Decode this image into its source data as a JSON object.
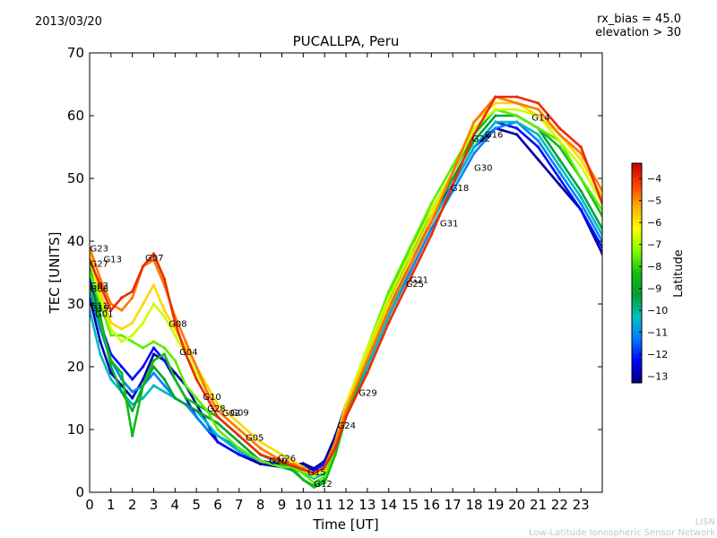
{
  "header": {
    "date": "2013/03/20",
    "rx_bias": "rx_bias = 45.0",
    "elevation": "elevation > 30"
  },
  "footer": {
    "line1": "LISN",
    "line2": "Low-Latitude Ionospheric Sensor Network"
  },
  "chart_data": {
    "type": "scatter",
    "title": "PUCALLPA, Peru",
    "xlabel": "Time [UT]",
    "ylabel": "TEC [UNITS]",
    "xlim": [
      0,
      24
    ],
    "ylim": [
      0,
      70
    ],
    "xticks": [
      0,
      1,
      2,
      3,
      4,
      5,
      6,
      7,
      8,
      9,
      10,
      11,
      12,
      13,
      14,
      15,
      16,
      17,
      18,
      19,
      20,
      21,
      22,
      23
    ],
    "yticks": [
      0,
      10,
      20,
      30,
      40,
      50,
      60,
      70
    ],
    "grid": false,
    "colorbar": {
      "label": "Latitude",
      "min": -13.3,
      "max": -3.3,
      "ticks": [
        -4,
        -5,
        -6,
        -7,
        -8,
        -9,
        -10,
        -11,
        -12,
        -13
      ],
      "colors": [
        "#00007f",
        "#0000ff",
        "#007fff",
        "#00bfbf",
        "#00a030",
        "#11c011",
        "#7fff00",
        "#ffff00",
        "#ffb000",
        "#ff4000",
        "#bf0000"
      ]
    },
    "satellite_labels": [
      {
        "text": "G23",
        "x": 0.02,
        "y": 38.9
      },
      {
        "text": "G27",
        "x": 0.02,
        "y": 36.5
      },
      {
        "text": "G13",
        "x": 0.65,
        "y": 37.2
      },
      {
        "text": "G03",
        "x": 0.02,
        "y": 33.0
      },
      {
        "text": "G06",
        "x": 0.02,
        "y": 32.5
      },
      {
        "text": "G11",
        "x": 0.02,
        "y": 29.8
      },
      {
        "text": "G19",
        "x": 0.05,
        "y": 29.4
      },
      {
        "text": "G01",
        "x": 0.25,
        "y": 28.5
      },
      {
        "text": "G07",
        "x": 2.6,
        "y": 37.4
      },
      {
        "text": "G08",
        "x": 3.7,
        "y": 26.9
      },
      {
        "text": "G04",
        "x": 4.2,
        "y": 22.4
      },
      {
        "text": "G10",
        "x": 5.3,
        "y": 15.3
      },
      {
        "text": "G28",
        "x": 5.5,
        "y": 13.4
      },
      {
        "text": "G02",
        "x": 6.2,
        "y": 12.7
      },
      {
        "text": "G09",
        "x": 6.6,
        "y": 12.8
      },
      {
        "text": "G05",
        "x": 7.3,
        "y": 8.8
      },
      {
        "text": "G20",
        "x": 8.4,
        "y": 5.1
      },
      {
        "text": "G26",
        "x": 8.8,
        "y": 5.5
      },
      {
        "text": "G15",
        "x": 10.2,
        "y": 3.3
      },
      {
        "text": "G12",
        "x": 10.5,
        "y": 1.4
      },
      {
        "text": "G24",
        "x": 11.6,
        "y": 10.7
      },
      {
        "text": "G29",
        "x": 12.6,
        "y": 15.9
      },
      {
        "text": "G21",
        "x": 15.0,
        "y": 33.9
      },
      {
        "text": "G25",
        "x": 14.8,
        "y": 33.3
      },
      {
        "text": "G31",
        "x": 16.4,
        "y": 42.9
      },
      {
        "text": "G18",
        "x": 16.9,
        "y": 48.6
      },
      {
        "text": "G30",
        "x": 18.0,
        "y": 51.8
      },
      {
        "text": "G22",
        "x": 17.9,
        "y": 56.4
      },
      {
        "text": "G16",
        "x": 18.5,
        "y": 57.1
      },
      {
        "text": "G14",
        "x": 20.7,
        "y": 59.8
      }
    ],
    "series": [
      {
        "lat": -13.0,
        "x": [
          0,
          0.5,
          1,
          1.5,
          2,
          2.5,
          3,
          3.5,
          4,
          4.5,
          5,
          5.5,
          6,
          7,
          8,
          9,
          9.5,
          10,
          10.5,
          11,
          11.5,
          12,
          13,
          14,
          15,
          16,
          17,
          18,
          19,
          20,
          21,
          22,
          23,
          24
        ],
        "y": [
          31,
          24,
          19,
          17,
          15,
          18,
          22,
          21,
          19,
          17,
          14,
          11,
          8,
          6,
          4.5,
          4,
          4.3,
          4.6,
          3.8,
          5,
          9,
          14,
          22,
          31,
          38,
          44,
          49,
          55,
          58,
          57,
          53,
          49,
          45,
          38
        ]
      },
      {
        "lat": -12.2,
        "x": [
          0,
          0.5,
          1,
          1.5,
          2,
          2.5,
          3,
          3.5,
          4,
          4.5,
          5,
          5.5,
          6,
          7,
          8,
          9,
          9.5,
          10,
          10.5,
          11,
          11.5,
          12,
          13,
          14,
          15,
          16,
          17,
          18,
          19,
          20,
          21,
          22,
          23,
          24
        ],
        "y": [
          34,
          27,
          22,
          20,
          18,
          20,
          23,
          21,
          18,
          15,
          12,
          10,
          8,
          6,
          5,
          4.5,
          4.5,
          4.2,
          3.5,
          4.5,
          8,
          13,
          21,
          29,
          37,
          43,
          49,
          55,
          59,
          58,
          55,
          50,
          45,
          39
        ]
      },
      {
        "lat": -11.2,
        "x": [
          0,
          0.5,
          1,
          1.5,
          2,
          2.5,
          3,
          3.5,
          4,
          4.5,
          5,
          5.5,
          6,
          7,
          8,
          9,
          9.5,
          10,
          10.5,
          11,
          11.5,
          12,
          13,
          14,
          15,
          16,
          17,
          18,
          19,
          20,
          21,
          22,
          23,
          24
        ],
        "y": [
          32,
          26,
          21,
          18,
          16,
          17,
          19,
          17,
          15,
          14,
          12,
          10,
          9,
          7,
          5,
          4,
          4,
          3.5,
          3,
          4,
          7,
          12,
          20,
          28,
          35,
          42,
          48,
          54,
          58,
          59,
          56,
          51,
          46,
          40
        ]
      },
      {
        "lat": -10.4,
        "x": [
          0,
          0.5,
          1,
          1.5,
          2,
          2.5,
          3,
          3.5,
          4,
          4.5,
          5,
          5.5,
          6,
          7,
          8,
          9,
          9.5,
          10,
          10.5,
          11,
          11.5,
          12,
          13,
          14,
          15,
          16,
          17,
          18,
          19,
          20,
          21,
          22,
          23,
          24
        ],
        "y": [
          29,
          22,
          18,
          16,
          14,
          15,
          17,
          16,
          15,
          14,
          13,
          11,
          9,
          6.5,
          5,
          4,
          3.8,
          3.2,
          2.2,
          3,
          7,
          12,
          20,
          28,
          36,
          43,
          49,
          55,
          59,
          59,
          57,
          52,
          47,
          41
        ]
      },
      {
        "lat": -9.4,
        "x": [
          0,
          0.5,
          1,
          1.5,
          2,
          2.5,
          3,
          3.5,
          4,
          4.5,
          5,
          5.5,
          6,
          7,
          8,
          9,
          9.5,
          10,
          10.5,
          11,
          11.5,
          12,
          13,
          14,
          15,
          16,
          17,
          18,
          19,
          20,
          21,
          22,
          23,
          24
        ],
        "y": [
          36,
          28,
          20,
          16,
          13,
          17,
          20,
          18,
          15,
          14,
          13,
          12,
          11,
          8,
          5,
          4,
          3.5,
          2,
          1,
          2,
          6,
          12,
          21,
          30,
          38,
          44,
          50,
          56,
          60,
          60,
          58,
          53,
          48,
          42
        ]
      },
      {
        "lat": -8.4,
        "x": [
          0,
          0.5,
          1,
          1.5,
          2,
          2.5,
          3,
          3.5,
          4,
          4.5,
          5,
          5.5,
          6,
          7,
          8,
          9,
          9.5,
          10,
          10.5,
          11,
          11.5,
          12,
          13,
          14,
          15,
          16,
          17,
          18,
          19,
          20,
          21,
          22,
          23,
          24
        ],
        "y": [
          33,
          27,
          21,
          19,
          9,
          17,
          21,
          22,
          18,
          15,
          14,
          13,
          12,
          9,
          6,
          4.5,
          3.8,
          2,
          0.8,
          1.5,
          6,
          12,
          22,
          31,
          39,
          45,
          51,
          57,
          61,
          60,
          58,
          55,
          50,
          44
        ]
      },
      {
        "lat": -7.6,
        "x": [
          0,
          0.5,
          1,
          1.5,
          2,
          2.5,
          3,
          3.5,
          4,
          4.5,
          5,
          5.5,
          6,
          7,
          8,
          9,
          9.5,
          10,
          10.5,
          11,
          11.5,
          12,
          13,
          14,
          15,
          16,
          17,
          18,
          19,
          20,
          21,
          22,
          23,
          24
        ],
        "y": [
          35,
          30,
          25,
          25,
          24,
          23,
          24,
          23,
          21,
          17,
          15,
          13,
          10,
          7,
          5,
          4,
          4,
          3,
          1.5,
          2.5,
          7,
          13,
          23,
          32,
          39,
          46,
          52,
          58,
          61,
          60,
          58,
          56,
          50,
          45
        ]
      },
      {
        "lat": -6.7,
        "x": [
          0,
          0.5,
          1,
          1.5,
          2,
          2.5,
          3,
          3.5,
          4,
          4.5,
          5,
          5.5,
          6,
          7,
          8,
          9,
          9.5,
          10,
          10.5,
          11,
          11.5,
          12,
          13,
          14,
          15,
          16,
          17,
          18,
          19,
          20,
          21,
          22,
          23,
          24
        ],
        "y": [
          37,
          31,
          26,
          24,
          25,
          27,
          30,
          28,
          25,
          22,
          19,
          16,
          13,
          10,
          7,
          5,
          4.5,
          3.5,
          2.5,
          3.5,
          8,
          14,
          23,
          31,
          38,
          45,
          51,
          58,
          61,
          61,
          60,
          56,
          52,
          46
        ]
      },
      {
        "lat": -5.8,
        "x": [
          0,
          0.5,
          1,
          1.5,
          2,
          2.5,
          3,
          3.5,
          4,
          4.5,
          5,
          5.5,
          6,
          7,
          8,
          9,
          9.5,
          10,
          10.5,
          11,
          11.5,
          12,
          13,
          14,
          15,
          16,
          17,
          18,
          19,
          20,
          21,
          22,
          23,
          24
        ],
        "y": [
          38,
          32,
          27,
          26,
          27,
          30,
          33,
          29,
          26,
          23,
          20,
          17,
          14,
          11,
          8,
          6,
          5,
          4,
          3,
          4,
          8,
          14,
          22,
          30,
          37,
          44,
          51,
          59,
          62,
          62,
          60,
          57,
          53,
          47
        ]
      },
      {
        "lat": -4.8,
        "x": [
          0,
          0.5,
          1,
          1.5,
          2,
          2.5,
          3,
          3.5,
          4,
          4.5,
          5,
          5.5,
          6,
          7,
          8,
          9,
          9.5,
          10,
          10.5,
          11,
          11.5,
          12,
          13,
          14,
          15,
          16,
          17,
          18,
          19,
          20,
          21,
          22,
          23,
          24
        ],
        "y": [
          39,
          34,
          30,
          29,
          31,
          36,
          37,
          33,
          28,
          24,
          20,
          16,
          13,
          10,
          7,
          5,
          4.5,
          3.8,
          3,
          4,
          8,
          13,
          21,
          29,
          36,
          43,
          51,
          59,
          63,
          62,
          61,
          57,
          54,
          48
        ]
      },
      {
        "lat": -4.0,
        "x": [
          0,
          0.5,
          1,
          1.5,
          2,
          2.5,
          3,
          3.5,
          4,
          4.5,
          5,
          5.5,
          6,
          7,
          8,
          9,
          9.5,
          10,
          10.5,
          11,
          11.5,
          12,
          13,
          14,
          15,
          16,
          17,
          18,
          19,
          20,
          21,
          22,
          23,
          24
        ],
        "y": [
          37,
          33,
          29,
          31,
          32,
          36,
          38,
          34,
          27,
          22,
          18,
          15,
          12,
          9,
          6,
          4.8,
          4.2,
          3.6,
          3,
          4,
          7,
          12,
          19,
          27,
          34,
          41,
          49,
          57,
          63,
          63,
          62,
          58,
          55,
          46
        ]
      }
    ]
  }
}
